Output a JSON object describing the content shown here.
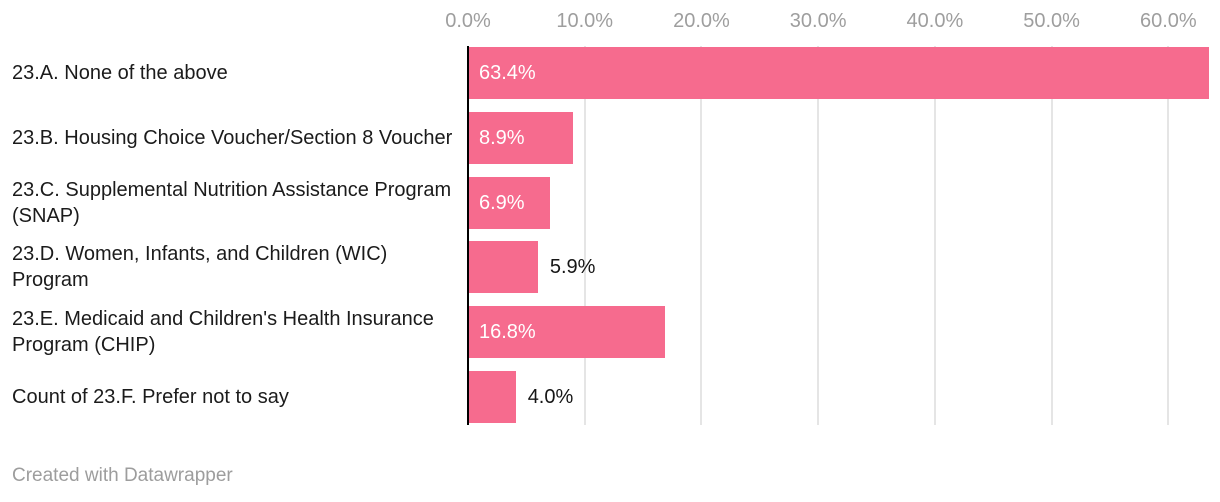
{
  "chart_data": {
    "type": "bar",
    "orientation": "horizontal",
    "title": "",
    "categories": [
      "23.A. None of the above",
      "23.B. Housing Choice Voucher/Section 8 Voucher",
      "23.C. Supplemental Nutrition Assistance Program (SNAP)",
      "23.D. Women, Infants, and Children (WIC) Program",
      "23.E. Medicaid and Children's Health Insurance Program (CHIP)",
      "Count of 23.F. Prefer not to say"
    ],
    "values": [
      63.4,
      8.9,
      6.9,
      5.9,
      16.8,
      4.0
    ],
    "value_labels": [
      "63.4%",
      "8.9%",
      "6.9%",
      "5.9%",
      "16.8%",
      "4.0%"
    ],
    "x_tick_values": [
      0,
      10,
      20,
      30,
      40,
      50,
      60
    ],
    "x_tick_labels": [
      "0.0%",
      "10.0%",
      "20.0%",
      "30.0%",
      "40.0%",
      "50.0%",
      "60.0%"
    ],
    "xlim": [
      0,
      63.4
    ],
    "grid": true,
    "legend": "none",
    "axis_position": "top",
    "colors": {
      "bar": "#F66B8E",
      "gridline": "#E5E5E5",
      "axis_line": "#000000",
      "tick_label": "#9E9E9E",
      "category_label": "#1B1B1B",
      "value_label_inside": "#FFFFFF",
      "value_label_outside": "#161616"
    }
  },
  "footer": {
    "credit": "Created with Datawrapper"
  }
}
